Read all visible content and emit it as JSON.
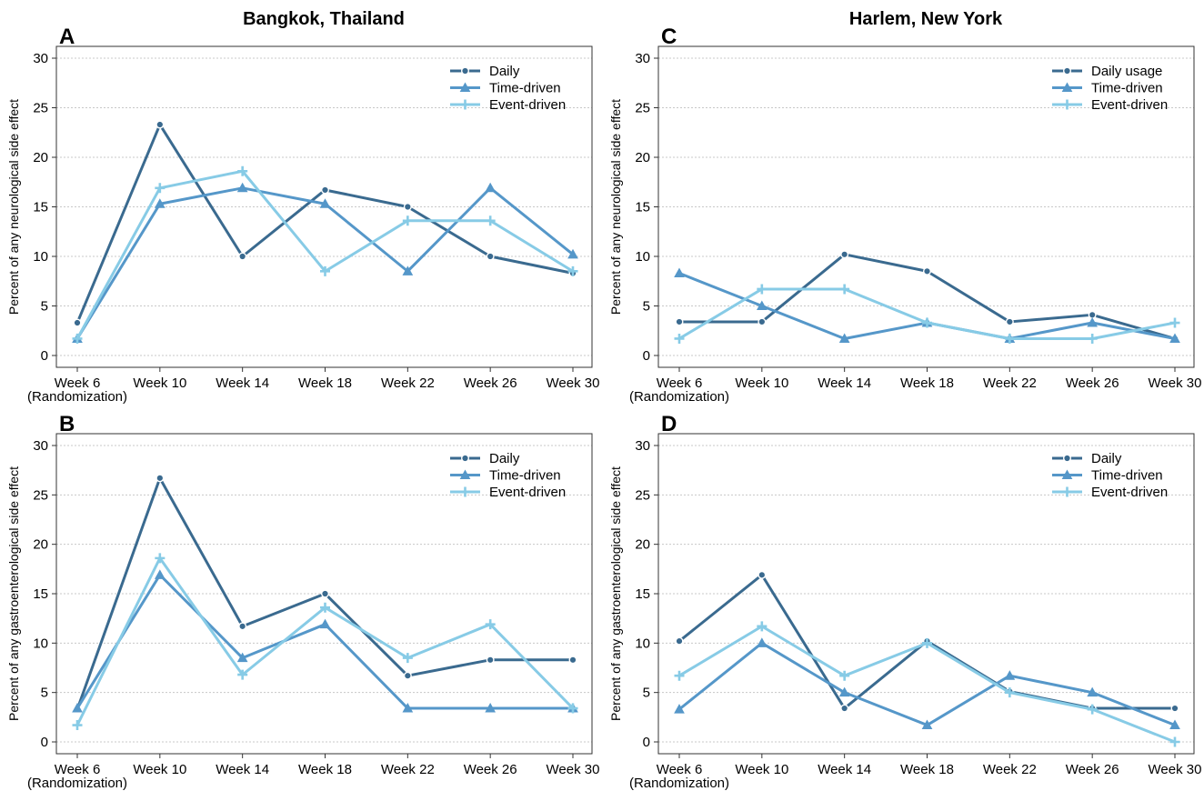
{
  "column_titles": [
    "Bangkok, Thailand",
    "Harlem, New York"
  ],
  "colors": {
    "daily": "#3a6a8f",
    "time": "#5597c9",
    "event": "#87cbe6"
  },
  "chart_data": [
    {
      "panel": "A",
      "type": "line",
      "ylabel": "Percent of any neurological side effect",
      "categories": [
        "Week 6",
        "Week 10",
        "Week 14",
        "Week 18",
        "Week 22",
        "Week 26",
        "Week 30"
      ],
      "first_category_sublabel": "(Randomization)",
      "ylim": [
        0,
        30
      ],
      "yticks": [
        0,
        5,
        10,
        15,
        20,
        25,
        30
      ],
      "grid": true,
      "legend_position": "top-right",
      "series": [
        {
          "name": "Daily",
          "marker": "circle",
          "color_key": "daily",
          "values": [
            3.3,
            23.3,
            10.0,
            16.7,
            15.0,
            10.0,
            8.3
          ]
        },
        {
          "name": "Time-driven",
          "marker": "triangle",
          "color_key": "time",
          "values": [
            1.7,
            15.3,
            16.9,
            15.3,
            8.5,
            16.9,
            10.2
          ]
        },
        {
          "name": "Event-driven",
          "marker": "plus",
          "color_key": "event",
          "values": [
            1.7,
            16.9,
            18.6,
            8.5,
            13.6,
            13.6,
            8.5
          ]
        }
      ]
    },
    {
      "panel": "B",
      "type": "line",
      "ylabel": "Percent of any gastroenterological side effect",
      "categories": [
        "Week 6",
        "Week 10",
        "Week 14",
        "Week 18",
        "Week 22",
        "Week 26",
        "Week 30"
      ],
      "first_category_sublabel": "(Randomization)",
      "ylim": [
        0,
        30
      ],
      "yticks": [
        0,
        5,
        10,
        15,
        20,
        25,
        30
      ],
      "grid": true,
      "legend_position": "top-right",
      "series": [
        {
          "name": "Daily",
          "marker": "circle",
          "color_key": "daily",
          "values": [
            3.3,
            26.7,
            11.7,
            15.0,
            6.7,
            8.3,
            8.3
          ]
        },
        {
          "name": "Time-driven",
          "marker": "triangle",
          "color_key": "time",
          "values": [
            3.4,
            16.9,
            8.5,
            11.9,
            3.4,
            3.4,
            3.4
          ]
        },
        {
          "name": "Event-driven",
          "marker": "plus",
          "color_key": "event",
          "values": [
            1.7,
            18.6,
            6.8,
            13.6,
            8.5,
            11.9,
            3.4
          ]
        }
      ]
    },
    {
      "panel": "C",
      "type": "line",
      "ylabel": "Percent of any neurological side effect",
      "categories": [
        "Week 6",
        "Week 10",
        "Week 14",
        "Week 18",
        "Week 22",
        "Week 26",
        "Week 30"
      ],
      "first_category_sublabel": "(Randomization)",
      "ylim": [
        0,
        30
      ],
      "yticks": [
        0,
        5,
        10,
        15,
        20,
        25,
        30
      ],
      "grid": true,
      "legend_position": "top-right",
      "series": [
        {
          "name": "Daily usage",
          "marker": "circle",
          "color_key": "daily",
          "values": [
            3.4,
            3.4,
            10.2,
            8.5,
            3.4,
            4.1,
            1.7
          ]
        },
        {
          "name": "Time-driven",
          "marker": "triangle",
          "color_key": "time",
          "values": [
            8.3,
            5.0,
            1.7,
            3.3,
            1.7,
            3.3,
            1.7
          ]
        },
        {
          "name": "Event-driven",
          "marker": "plus",
          "color_key": "event",
          "values": [
            1.7,
            6.7,
            6.7,
            3.3,
            1.7,
            1.7,
            3.3
          ]
        }
      ]
    },
    {
      "panel": "D",
      "type": "line",
      "ylabel": "Percent of any gastroenterological side effect",
      "categories": [
        "Week 6",
        "Week 10",
        "Week 14",
        "Week 18",
        "Week 22",
        "Week 26",
        "Week 30"
      ],
      "first_category_sublabel": "(Randomization)",
      "ylim": [
        0,
        30
      ],
      "yticks": [
        0,
        5,
        10,
        15,
        20,
        25,
        30
      ],
      "grid": true,
      "legend_position": "top-right",
      "series": [
        {
          "name": "Daily",
          "marker": "circle",
          "color_key": "daily",
          "values": [
            10.2,
            16.9,
            3.4,
            10.2,
            5.1,
            3.4,
            3.4
          ]
        },
        {
          "name": "Time-driven",
          "marker": "triangle",
          "color_key": "time",
          "values": [
            3.3,
            10.0,
            5.0,
            1.7,
            6.7,
            5.0,
            1.7
          ]
        },
        {
          "name": "Event-driven",
          "marker": "plus",
          "color_key": "event",
          "values": [
            6.7,
            11.7,
            6.7,
            10.0,
            5.0,
            3.3,
            0.0
          ]
        }
      ]
    }
  ]
}
